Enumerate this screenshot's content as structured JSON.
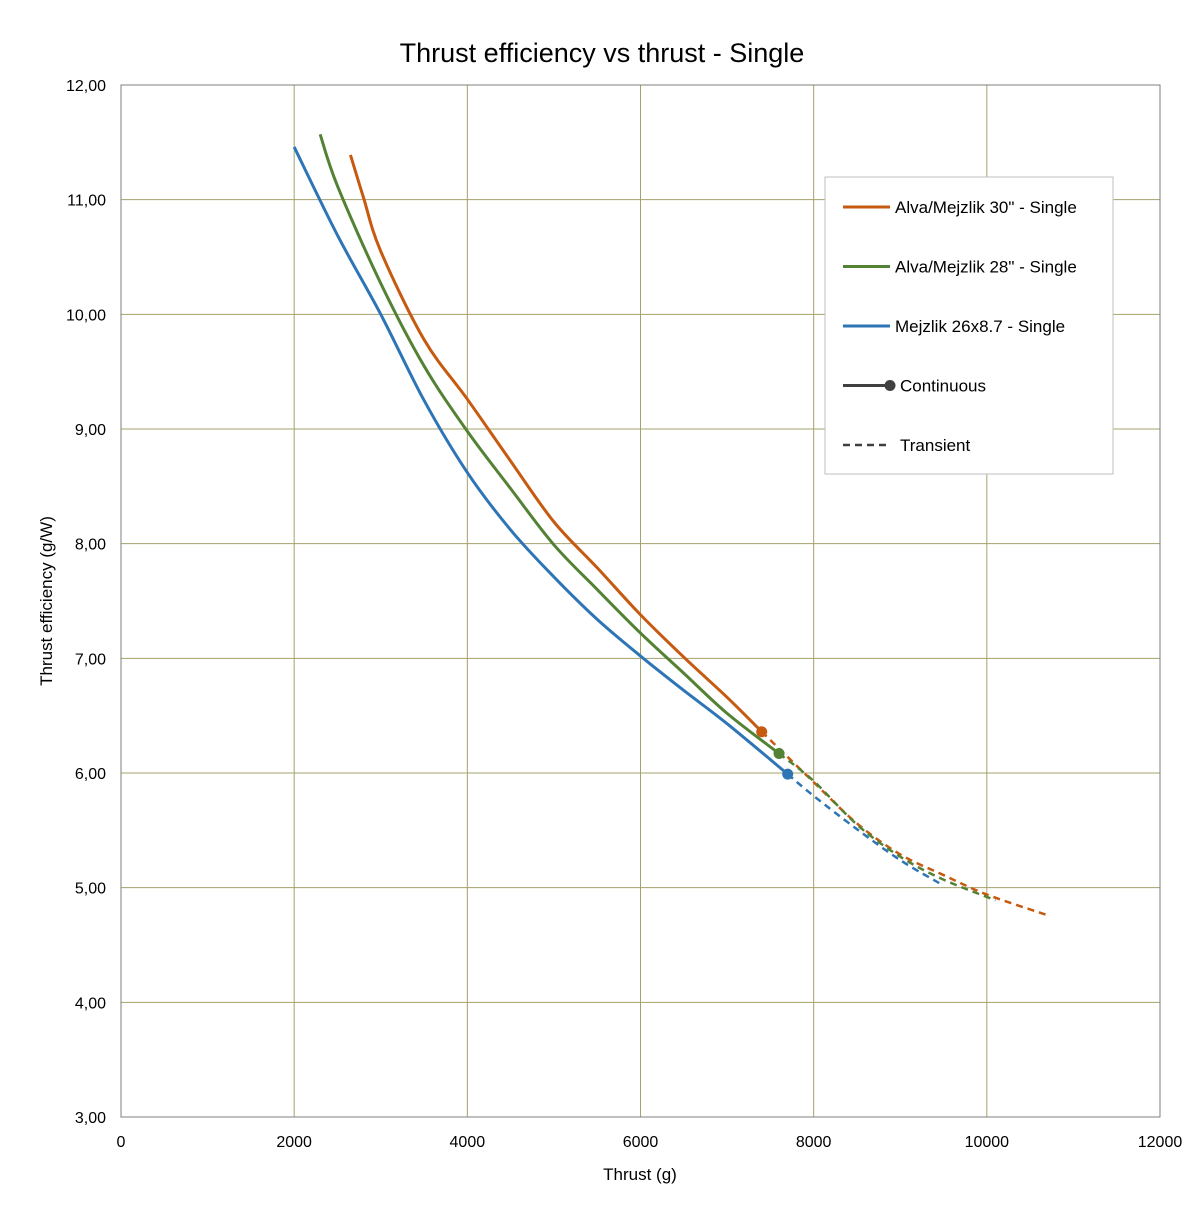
{
  "chart_data": {
    "type": "line",
    "title": "Thrust efficiency vs thrust - Single",
    "xlabel": "Thrust (g)",
    "ylabel": "Thrust efficiency (g/W)",
    "xlim": [
      0,
      12000
    ],
    "ylim": [
      3,
      12
    ],
    "x_ticks": [
      0,
      2000,
      4000,
      6000,
      8000,
      10000,
      12000
    ],
    "x_tick_labels": [
      "0",
      "2000",
      "4000",
      "6000",
      "8000",
      "10000",
      "12000"
    ],
    "y_ticks": [
      3,
      4,
      5,
      6,
      7,
      8,
      9,
      10,
      11,
      12
    ],
    "y_tick_labels": [
      "3,00",
      "4,00",
      "5,00",
      "6,00",
      "7,00",
      "8,00",
      "9,00",
      "10,00",
      "11,00",
      "12,00"
    ],
    "grid": true,
    "legend_position": "top-right",
    "series": [
      {
        "name": "Alva/Mejzlik 30\" - Single",
        "color": "#C65A11",
        "continuous": [
          [
            2650,
            11.39
          ],
          [
            2800,
            11.02
          ],
          [
            3000,
            10.55
          ],
          [
            3500,
            9.78
          ],
          [
            4000,
            9.26
          ],
          [
            4500,
            8.72
          ],
          [
            5000,
            8.19
          ],
          [
            5500,
            7.79
          ],
          [
            6000,
            7.38
          ],
          [
            6500,
            7.01
          ],
          [
            7000,
            6.66
          ],
          [
            7400,
            6.36
          ]
        ],
        "transient": [
          [
            7400,
            6.36
          ],
          [
            8000,
            5.92
          ],
          [
            8500,
            5.56
          ],
          [
            9000,
            5.29
          ],
          [
            9500,
            5.11
          ],
          [
            10000,
            4.94
          ],
          [
            10700,
            4.76
          ]
        ]
      },
      {
        "name": "Alva/Mejzlik 28\" - Single",
        "color": "#548235",
        "continuous": [
          [
            2300,
            11.57
          ],
          [
            2500,
            11.12
          ],
          [
            3000,
            10.27
          ],
          [
            3500,
            9.55
          ],
          [
            4000,
            8.98
          ],
          [
            4500,
            8.48
          ],
          [
            5000,
            7.99
          ],
          [
            5500,
            7.6
          ],
          [
            6000,
            7.22
          ],
          [
            6500,
            6.87
          ],
          [
            7000,
            6.52
          ],
          [
            7600,
            6.17
          ]
        ],
        "transient": [
          [
            7600,
            6.17
          ],
          [
            8000,
            5.93
          ],
          [
            8500,
            5.55
          ],
          [
            9000,
            5.27
          ],
          [
            9500,
            5.07
          ],
          [
            10100,
            4.89
          ]
        ]
      },
      {
        "name": "Mejzlik 26x8.7 - Single",
        "color": "#2E75B6",
        "continuous": [
          [
            2000,
            11.46
          ],
          [
            2500,
            10.69
          ],
          [
            3000,
            10.0
          ],
          [
            3500,
            9.25
          ],
          [
            4000,
            8.62
          ],
          [
            4500,
            8.12
          ],
          [
            5000,
            7.71
          ],
          [
            5500,
            7.34
          ],
          [
            6000,
            7.02
          ],
          [
            6500,
            6.72
          ],
          [
            7000,
            6.43
          ],
          [
            7700,
            5.99
          ]
        ],
        "transient": [
          [
            7700,
            5.99
          ],
          [
            8000,
            5.8
          ],
          [
            8500,
            5.51
          ],
          [
            9000,
            5.24
          ],
          [
            9450,
            5.04
          ]
        ]
      }
    ],
    "legend_style_entries": [
      {
        "label": "Continuous",
        "style": "solid-with-marker",
        "color": "#404040"
      },
      {
        "label": "Transient",
        "style": "dashed",
        "color": "#404040"
      }
    ]
  }
}
